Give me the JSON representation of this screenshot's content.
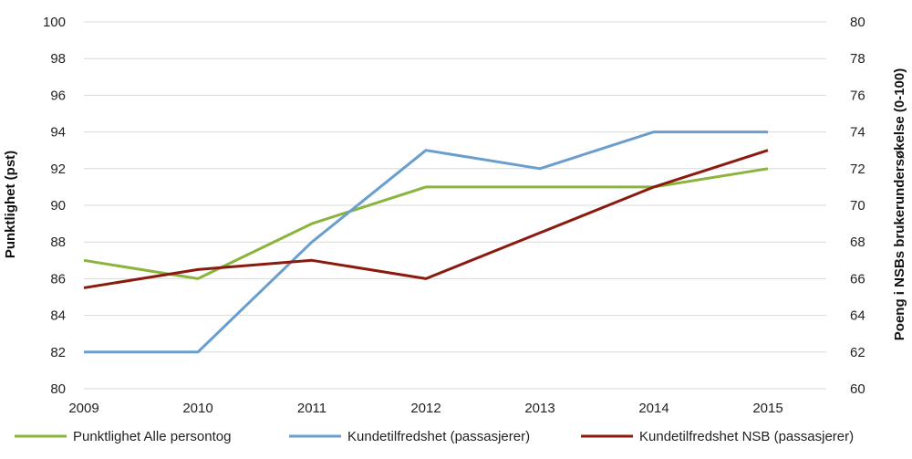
{
  "chart_data": {
    "type": "line",
    "x": [
      "2009",
      "2010",
      "2011",
      "2012",
      "2013",
      "2014",
      "2015"
    ],
    "ylabel_left": "Punktlighet (pst)",
    "ylabel_right": "Poeng i NSBs brukerundersøkelse (0-100)",
    "ylim_left": [
      80,
      100
    ],
    "ylim_right": [
      60,
      80
    ],
    "yticks_left": [
      "80",
      "82",
      "84",
      "86",
      "88",
      "90",
      "92",
      "94",
      "96",
      "98",
      "100"
    ],
    "yticks_right": [
      "60",
      "62",
      "64",
      "66",
      "68",
      "70",
      "72",
      "74",
      "76",
      "78",
      "80"
    ],
    "grid": true,
    "legend_position": "bottom",
    "series": [
      {
        "name": "Punktlighet Alle persontog",
        "axis": "left",
        "color": "#8ab43c",
        "values": [
          87,
          86,
          89,
          91,
          91,
          91,
          92
        ]
      },
      {
        "name": "Kundetilfredshet (passasjerer)",
        "axis": "right",
        "color": "#6a9ecf",
        "values": [
          62,
          62,
          68,
          73,
          72,
          74,
          74
        ]
      },
      {
        "name": "Kundetilfredshet NSB (passasjerer)",
        "axis": "right",
        "color": "#8b1a0e",
        "values": [
          65.5,
          66.5,
          67,
          66,
          68.5,
          71,
          73
        ]
      }
    ]
  }
}
